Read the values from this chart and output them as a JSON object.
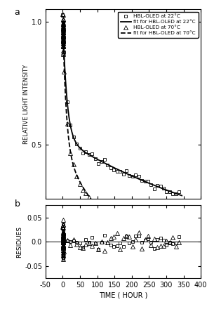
{
  "title_a": "a",
  "title_b": "b",
  "xlabel": "TIME ( HOUR )",
  "ylabel_a": "RELATIVE LIGHT INTENSITY",
  "ylabel_b": "RESIDUES",
  "xlim": [
    -50,
    400
  ],
  "ylim_a": [
    0.28,
    1.05
  ],
  "ylim_b": [
    -0.075,
    0.075
  ],
  "yticks_a": [
    0.5,
    1.0
  ],
  "yticks_b": [
    -0.05,
    0.0,
    0.05
  ],
  "xticks": [
    -50,
    0,
    50,
    100,
    150,
    200,
    250,
    300,
    350,
    400
  ],
  "xticklabels": [
    "-50",
    "0",
    "50",
    "100",
    "150",
    "200",
    "250",
    "300",
    "350",
    "400"
  ],
  "legend_labels": [
    "HBL-OLED at 22°C",
    "fit for HBL-OLED at 22°C",
    "HBL-OLED at 70°C",
    "fit for HBL-OLED at 70°C"
  ],
  "background_color": "#ffffff",
  "fit_A22": 0.48,
  "fit_B22": 0.52,
  "fit_tau1_22": 12.0,
  "fit_tau2_22": 600.0,
  "fit_A70": 0.52,
  "fit_B70": 0.48,
  "fit_tau1_70": 10.0,
  "fit_tau2_70": 150.0,
  "noise_scale_22": 0.008,
  "noise_scale_70": 0.01
}
